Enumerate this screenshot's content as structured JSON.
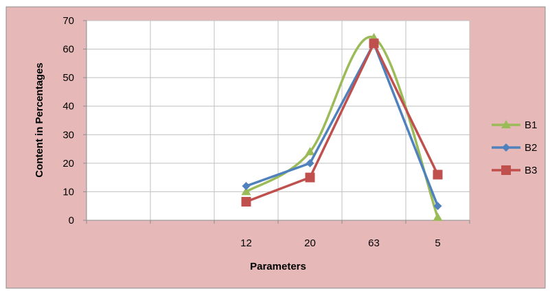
{
  "chart_data": {
    "type": "line",
    "categories": [
      "",
      "",
      "12",
      "20",
      "63",
      "5"
    ],
    "series": [
      {
        "name": "B1",
        "values": [
          null,
          null,
          10,
          24,
          64,
          1
        ],
        "color": "#9BBB59",
        "marker": "triangle",
        "smooth": true
      },
      {
        "name": "B2",
        "values": [
          null,
          null,
          12,
          20,
          62,
          5
        ],
        "color": "#4F81BD",
        "marker": "diamond",
        "smooth": false
      },
      {
        "name": "B3",
        "values": [
          null,
          null,
          6.5,
          15,
          62,
          16
        ],
        "color": "#C0504D",
        "marker": "square",
        "smooth": false
      }
    ],
    "xlabel": "Parameters",
    "ylabel": "Content in Percentages",
    "ylim": [
      0,
      70
    ],
    "yticks": [
      0,
      10,
      20,
      30,
      40,
      50,
      60,
      70
    ],
    "grid": true,
    "legend": "right"
  },
  "colors": {
    "background": "#E6B9B8",
    "plot_area": "#FFFFFF",
    "gridline": "#BFBFBF",
    "border": "#8C8C8C"
  }
}
